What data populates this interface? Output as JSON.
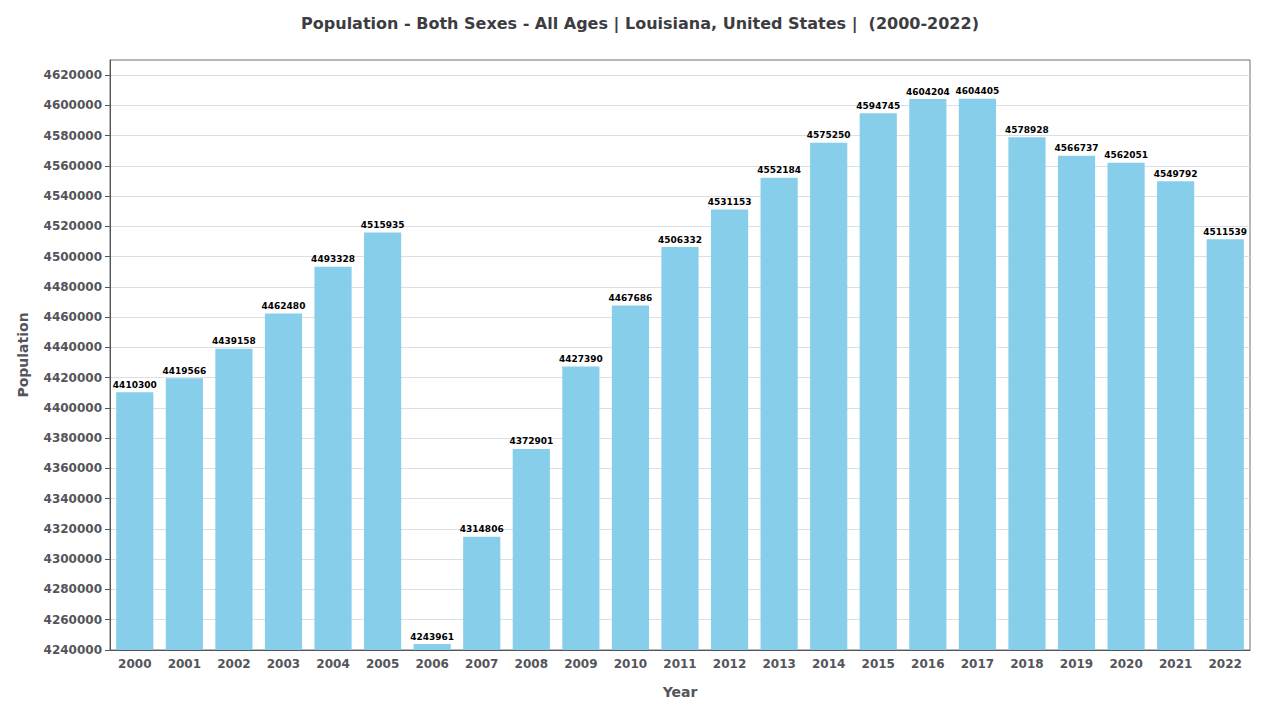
{
  "chart_data": {
    "type": "bar",
    "title": "Population - Both Sexes - All Ages | Louisiana, United States |  (2000-2022)",
    "xlabel": "Year",
    "ylabel": "Population",
    "categories": [
      "2000",
      "2001",
      "2002",
      "2003",
      "2004",
      "2005",
      "2006",
      "2007",
      "2008",
      "2009",
      "2010",
      "2011",
      "2012",
      "2013",
      "2014",
      "2015",
      "2016",
      "2017",
      "2018",
      "2019",
      "2020",
      "2021",
      "2022"
    ],
    "values": [
      4410300,
      4419566,
      4439158,
      4462480,
      4493328,
      4515935,
      4243961,
      4314806,
      4372901,
      4427390,
      4467686,
      4506332,
      4531153,
      4552184,
      4575250,
      4594745,
      4604204,
      4604405,
      4578928,
      4566737,
      4562051,
      4549792,
      4511539
    ],
    "color": "#87CEEB",
    "ylim": [
      4240000,
      4630000
    ],
    "yticks": [
      4240000,
      4260000,
      4280000,
      4300000,
      4320000,
      4340000,
      4360000,
      4380000,
      4400000,
      4420000,
      4440000,
      4460000,
      4480000,
      4500000,
      4520000,
      4540000,
      4560000,
      4580000,
      4600000,
      4620000
    ],
    "grid": true,
    "data_labels": true
  }
}
